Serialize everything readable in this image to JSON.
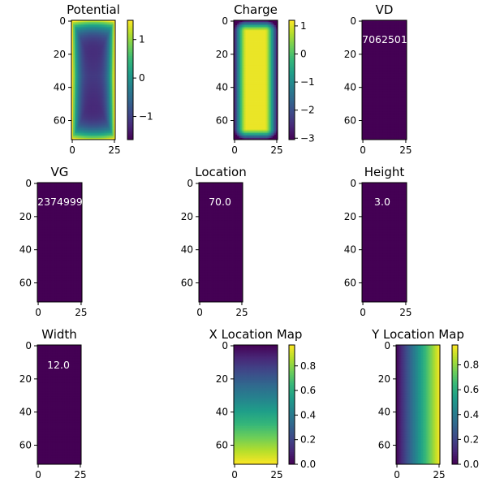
{
  "colors": {
    "viridis_min": "#440154",
    "viridis_max": "#fde725",
    "axis": "#000000",
    "overlay_text": "#ffffff"
  },
  "chart_data": [
    {
      "type": "heatmap",
      "title": "Potential",
      "pattern": "potential",
      "xticks": [
        "0",
        "25"
      ],
      "yticks": [
        "0",
        "20",
        "40",
        "60"
      ],
      "colorbar": {
        "vmin": -1.6,
        "vmax": 1.5,
        "ticks": [
          "1",
          "0",
          "−1"
        ],
        "tick_values": [
          1,
          0,
          -1
        ]
      }
    },
    {
      "type": "heatmap",
      "title": "Charge",
      "pattern": "charge",
      "xticks": [
        "0",
        "25"
      ],
      "yticks": [
        "0",
        "20",
        "40",
        "60"
      ],
      "colorbar": {
        "vmin": -3.05,
        "vmax": 1.2,
        "ticks": [
          "1",
          "0",
          "−1",
          "−2",
          "−3"
        ],
        "tick_values": [
          1,
          0,
          -1,
          -2,
          -3
        ]
      }
    },
    {
      "type": "heatmap",
      "title": "VD",
      "pattern": "uniform",
      "xticks": [
        "0",
        "25"
      ],
      "yticks": [
        "0",
        "20",
        "40",
        "60"
      ],
      "overlay": "7062501"
    },
    {
      "type": "heatmap",
      "title": "VG",
      "pattern": "uniform",
      "xticks": [
        "0",
        "25"
      ],
      "yticks": [
        "0",
        "20",
        "40",
        "60"
      ],
      "overlay": "2374999"
    },
    {
      "type": "heatmap",
      "title": "Location",
      "pattern": "uniform",
      "xticks": [
        "0",
        "25"
      ],
      "yticks": [
        "0",
        "20",
        "40",
        "60"
      ],
      "overlay": "70.0"
    },
    {
      "type": "heatmap",
      "title": "Height",
      "pattern": "uniform",
      "xticks": [
        "0",
        "25"
      ],
      "yticks": [
        "0",
        "20",
        "40",
        "60"
      ],
      "overlay": "3.0"
    },
    {
      "type": "heatmap",
      "title": "Width",
      "pattern": "uniform",
      "xticks": [
        "0",
        "25"
      ],
      "yticks": [
        "0",
        "20",
        "40",
        "60"
      ],
      "overlay": "12.0"
    },
    {
      "type": "heatmap",
      "title": "X Location Map",
      "pattern": "xgrad",
      "xticks": [
        "0",
        "25"
      ],
      "yticks": [
        "0",
        "20",
        "40",
        "60"
      ],
      "colorbar": {
        "vmin": 0.0,
        "vmax": 0.97,
        "ticks": [
          "0.8",
          "0.6",
          "0.4",
          "0.2",
          "0.0"
        ],
        "tick_values": [
          0.8,
          0.6,
          0.4,
          0.2,
          0.0
        ]
      }
    },
    {
      "type": "heatmap",
      "title": "Y Location Map",
      "pattern": "ygrad",
      "xticks": [
        "0",
        "25"
      ],
      "yticks": [
        "0",
        "20",
        "40",
        "60"
      ],
      "colorbar": {
        "vmin": 0.0,
        "vmax": 0.96,
        "ticks": [
          "0.8",
          "0.6",
          "0.4",
          "0.2",
          "0.0"
        ],
        "tick_values": [
          0.8,
          0.6,
          0.4,
          0.2,
          0.0
        ]
      }
    }
  ]
}
